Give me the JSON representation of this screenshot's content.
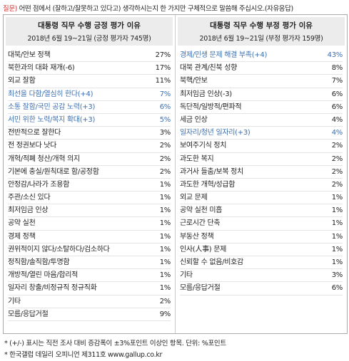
{
  "question": {
    "prefix": "질문)",
    "prefix_color": "#d03030",
    "text": "어떤 점에서 (잘하고/잘못하고 있다고) 생각하시는지 한 가지만 구체적으로 말씀해 주십시오.(자유응답)"
  },
  "tables": [
    {
      "title": "대통령 직무 수행 긍정 평가 이유",
      "subtitle": "2018년 6월 19~21일 (긍정 평가자 745명)",
      "rows": [
        {
          "label": "대북/안보 정책",
          "value": "27%"
        },
        {
          "label": "북한과의 대화 재개(-6)",
          "value": "17%"
        },
        {
          "label": "외교 잘함",
          "value": "11%"
        },
        {
          "label": "최선을 다함/열심히 한다(+4)",
          "value": "7%",
          "color": "#3c6fb0"
        },
        {
          "label": "소통 잘함/국민 공감 노력(+3)",
          "value": "6%",
          "color": "#3c6fb0"
        },
        {
          "label": "서민 위한 노력/복지 확대(+3)",
          "value": "5%",
          "color": "#3c6fb0"
        },
        {
          "label": "전반적으로 잘한다",
          "value": "3%"
        },
        {
          "label": "전 정권보다 낫다",
          "value": "2%"
        },
        {
          "label": "개혁/적폐 청산/개혁 의지",
          "value": "2%"
        },
        {
          "label": "기본에 충실/원칙대로 함/공정함",
          "value": "2%"
        },
        {
          "label": "안정감/나라가 조용함",
          "value": "1%"
        },
        {
          "label": "주관/소신 있다",
          "value": "1%"
        },
        {
          "label": "최저임금 인상",
          "value": "1%"
        },
        {
          "label": "공약 실천",
          "value": "1%"
        },
        {
          "label": "경제 정책",
          "value": "1%"
        },
        {
          "label": "권위적이지 않다/소탈하다/검소하다",
          "value": "1%"
        },
        {
          "label": "정직함/솔직함/투명함",
          "value": "1%"
        },
        {
          "label": "개방적/열린 마음/합리적",
          "value": "1%"
        },
        {
          "label": "일자리 창출/비정규직 정규직화",
          "value": "1%"
        },
        {
          "label": "기타",
          "value": "2%"
        },
        {
          "label": "모름/응답거절",
          "value": "9%"
        }
      ]
    },
    {
      "title": "대통령 직무 수행 부정 평가 이유",
      "subtitle": "2018년 6월 19~21일 (부정 평가자 159명)",
      "rows": [
        {
          "label": "경제/민생 문제 해결 부족(+4)",
          "value": "43%",
          "color": "#3c6fb0"
        },
        {
          "label": "대북 관계/친북 성향",
          "value": "8%"
        },
        {
          "label": "북핵/안보",
          "value": "7%"
        },
        {
          "label": "최저임금 인상(-3)",
          "value": "6%"
        },
        {
          "label": "독단적/일방적/편파적",
          "value": "6%"
        },
        {
          "label": "세금 인상",
          "value": "4%"
        },
        {
          "label": "일자리/청년 일자리(+3)",
          "value": "4%",
          "color": "#3c6fb0"
        },
        {
          "label": "보여주기식 정치",
          "value": "2%"
        },
        {
          "label": "과도한 복지",
          "value": "2%"
        },
        {
          "label": "과거사 들춤/보복 정치",
          "value": "2%"
        },
        {
          "label": "과도한 개혁/성급함",
          "value": "2%"
        },
        {
          "label": "외교 문제",
          "value": "1%"
        },
        {
          "label": "공약 실천 미흡",
          "value": "1%"
        },
        {
          "label": "근로시간 단축",
          "value": "1%"
        },
        {
          "label": "부동산 정책",
          "value": "1%"
        },
        {
          "label": "인사(人事) 문제",
          "value": "1%"
        },
        {
          "label": "신뢰할 수 없음/비호감",
          "value": "1%"
        },
        {
          "label": "기타",
          "value": "3%"
        },
        {
          "label": "모름/응답거절",
          "value": "6%"
        }
      ]
    }
  ],
  "footnotes": [
    "* (+/-) 표시는 직전 조사 대비 증감폭이 ±3%포인트 이상인 항목. 단위: %포인트",
    "* 한국갤럽 데일리 오피니언 제311호 www.gallup.co.kr"
  ]
}
